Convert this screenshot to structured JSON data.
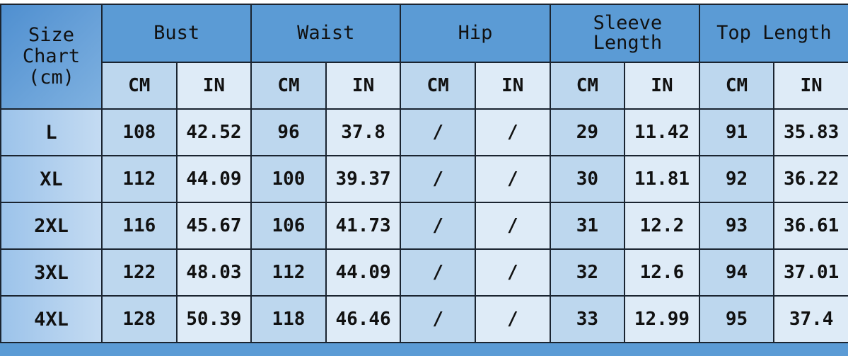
{
  "corner": {
    "line1": "Size",
    "line2": "Chart",
    "line3": "(cm)"
  },
  "groups": [
    "Bust",
    "Waist",
    "Hip",
    "Sleeve Length",
    "Top Length"
  ],
  "units": {
    "cm": "CM",
    "in": "IN"
  },
  "rows": [
    {
      "size": "L",
      "values": [
        "108",
        "42.52",
        "96",
        "37.8",
        "/",
        "/",
        "29",
        "11.42",
        "91",
        "35.83"
      ]
    },
    {
      "size": "XL",
      "values": [
        "112",
        "44.09",
        "100",
        "39.37",
        "/",
        "/",
        "30",
        "11.81",
        "92",
        "36.22"
      ]
    },
    {
      "size": "2XL",
      "values": [
        "116",
        "45.67",
        "106",
        "41.73",
        "/",
        "/",
        "31",
        "12.2",
        "93",
        "36.61"
      ]
    },
    {
      "size": "3XL",
      "values": [
        "122",
        "48.03",
        "112",
        "44.09",
        "/",
        "/",
        "32",
        "12.6",
        "94",
        "37.01"
      ]
    },
    {
      "size": "4XL",
      "values": [
        "128",
        "50.39",
        "118",
        "46.46",
        "/",
        "/",
        "33",
        "12.99",
        "95",
        "37.4"
      ]
    }
  ],
  "colors": {
    "header": "#5b9bd5",
    "cm_cell": "#bdd7ee",
    "in_cell": "#deebf7",
    "border": "#1a2430"
  }
}
